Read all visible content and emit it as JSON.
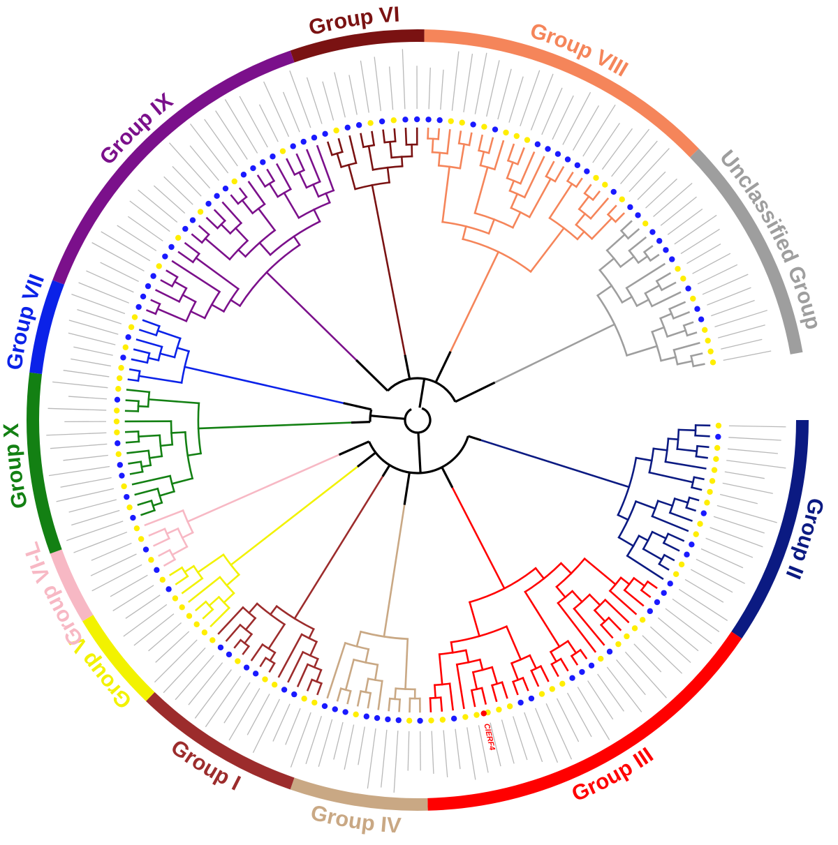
{
  "groups": [
    {
      "label": "Group VI",
      "color": "#7a1212"
    },
    {
      "label": "Group VIII",
      "color": "#f5855a"
    },
    {
      "label": "Unclassified Group",
      "color": "#9e9e9e"
    },
    {
      "label": "Group II",
      "color": "#0b1a82"
    },
    {
      "label": "Group III",
      "color": "#ff0000"
    },
    {
      "label": "Group IV",
      "color": "#c9a884"
    },
    {
      "label": "Group I",
      "color": "#9c2c2c"
    },
    {
      "label": "Group V",
      "color": "#f2f200"
    },
    {
      "label": "Group VI-L",
      "color": "#f7b8c4"
    },
    {
      "label": "Group X",
      "color": "#138013"
    },
    {
      "label": "Group VII",
      "color": "#0b22e8"
    },
    {
      "label": "Group IX",
      "color": "#7b108b"
    }
  ],
  "highlight": {
    "label": "ClERF4",
    "color": "#ff0000"
  }
}
